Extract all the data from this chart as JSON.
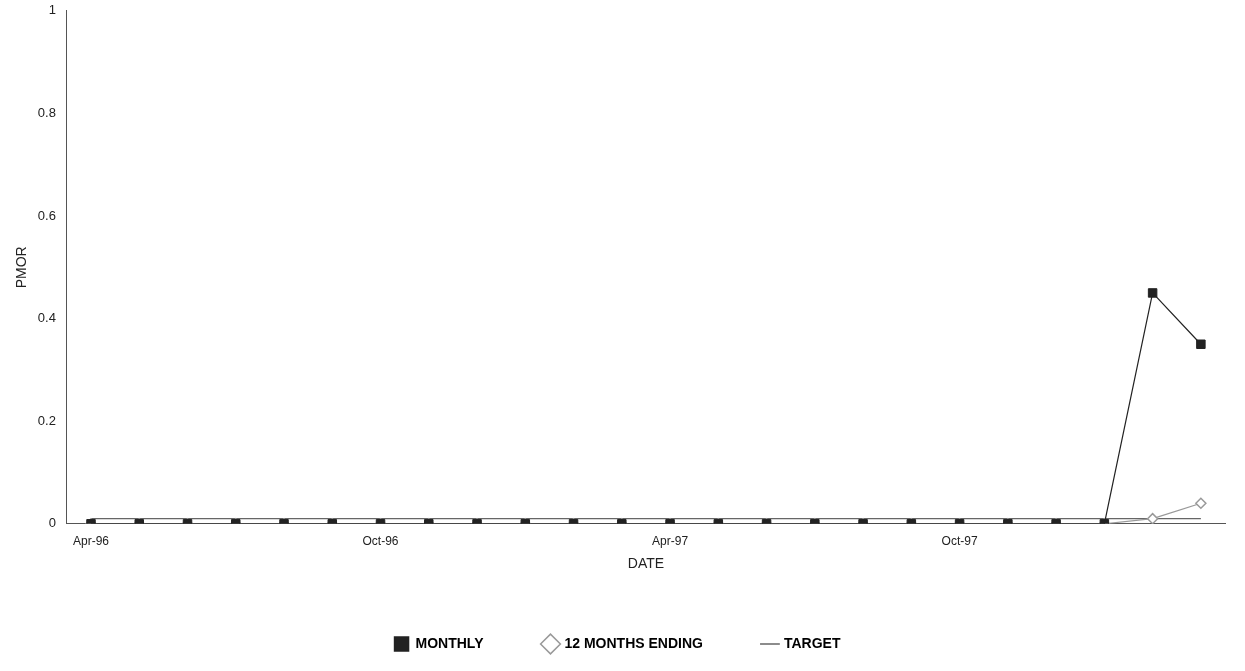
{
  "chart_data": {
    "type": "line",
    "xlabel": "DATE",
    "ylabel": "PMOR",
    "categories": [
      "Apr-96",
      null,
      null,
      null,
      null,
      null,
      "Oct-96",
      null,
      null,
      null,
      null,
      null,
      "Apr-97",
      null,
      null,
      null,
      null,
      null,
      "Oct-97",
      null,
      null,
      null,
      null,
      null
    ],
    "series": [
      {
        "name": "MONTHLY",
        "color": "#222222",
        "marker": "square",
        "values": [
          0,
          0,
          0,
          0,
          0,
          0,
          0,
          0,
          0,
          0,
          0,
          0,
          0,
          0,
          0,
          0,
          0,
          0,
          0,
          0,
          0,
          0,
          0.45,
          0.35
        ]
      },
      {
        "name": "12 MONTHS ENDING",
        "color": "#999999",
        "marker": "diamond",
        "values": [
          0,
          0,
          0,
          0,
          0,
          0,
          0,
          0,
          0,
          0,
          0,
          0,
          0,
          0,
          0,
          0,
          0,
          0,
          0,
          0,
          0,
          0,
          0.01,
          0.04
        ]
      },
      {
        "name": "TARGET",
        "color": "#666666",
        "marker": "none",
        "values": [
          0.01,
          0.01,
          0.01,
          0.01,
          0.01,
          0.01,
          0.01,
          0.01,
          0.01,
          0.01,
          0.01,
          0.01,
          0.01,
          0.01,
          0.01,
          0.01,
          0.01,
          0.01,
          0.01,
          0.01,
          0.01,
          0.01,
          0.01,
          0.01
        ]
      }
    ],
    "ylim": [
      0,
      1
    ],
    "yticks": [
      0,
      0.2,
      0.4,
      0.6,
      0.8,
      1
    ],
    "grid": false,
    "legend": "bottom"
  }
}
